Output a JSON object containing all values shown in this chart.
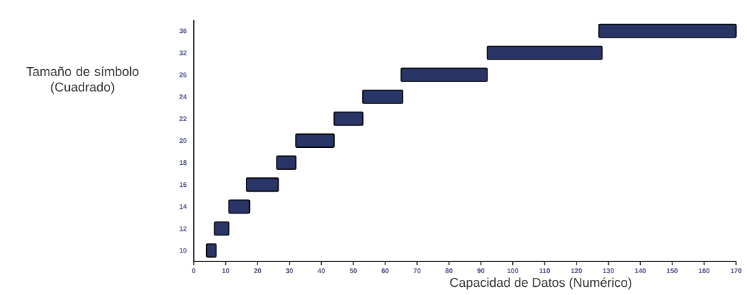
{
  "chart_data": {
    "type": "bar",
    "orientation": "horizontal",
    "xlabel": "Capacidad de Datos (Numérico)",
    "ylabel": "Tamaño de símbolo (Cuadrado)",
    "categories": [
      "36",
      "32",
      "26",
      "24",
      "22",
      "20",
      "18",
      "16",
      "14",
      "12",
      "10"
    ],
    "base": [
      127,
      92,
      65,
      53,
      44,
      32,
      26,
      16.5,
      11,
      6.5,
      4
    ],
    "values": [
      43,
      36,
      27,
      12.5,
      9,
      12,
      6,
      10,
      6.5,
      4.5,
      3
    ],
    "color": "#283566",
    "xlim": [
      0,
      170
    ],
    "xticks": [
      0,
      10,
      20,
      30,
      40,
      50,
      60,
      70,
      80,
      90,
      100,
      110,
      120,
      130,
      140,
      150,
      160,
      170
    ]
  }
}
